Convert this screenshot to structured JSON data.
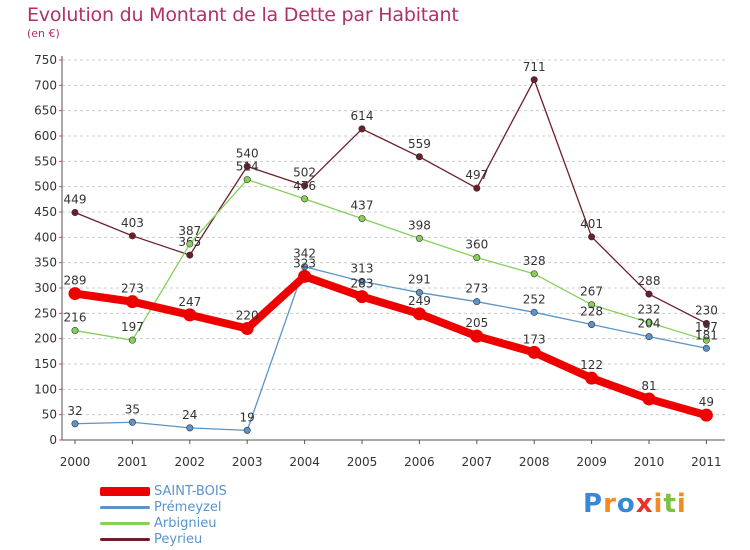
{
  "header": {
    "title": "Evolution du Montant de la Dette par Habitant",
    "subtitle": "(en €)"
  },
  "colors": {
    "title": "#b0306a",
    "grid": "#cccccc",
    "axis": "#555555",
    "tick_red": "#ff4444"
  },
  "chart_data": {
    "type": "line",
    "title": "Evolution du Montant de la Dette par Habitant",
    "ylabel": "(en €)",
    "xlabel": "",
    "categories": [
      "2000",
      "2001",
      "2002",
      "2003",
      "2004",
      "2005",
      "2006",
      "2007",
      "2008",
      "2009",
      "2010",
      "2011"
    ],
    "y_ticks": [
      0,
      50,
      100,
      150,
      200,
      250,
      300,
      350,
      400,
      450,
      500,
      550,
      600,
      650,
      700,
      750
    ],
    "ylim": [
      0,
      750
    ],
    "grid": "horizontal-dashed",
    "legend_position": "bottom-left",
    "series": [
      {
        "name": "Peyrieu",
        "color": "#6b1e2b",
        "values": [
          449,
          403,
          365,
          540,
          502,
          614,
          559,
          497,
          711,
          401,
          288,
          230
        ]
      },
      {
        "name": "Arbignieu",
        "color": "#86d05a",
        "values": [
          216,
          197,
          387,
          514,
          476,
          437,
          398,
          360,
          328,
          267,
          232,
          197
        ]
      },
      {
        "name": "Prémeyzel",
        "color": "#5a94c8",
        "values": [
          32,
          35,
          24,
          19,
          342,
          313,
          291,
          273,
          252,
          228,
          204,
          181
        ]
      },
      {
        "name": "SAINT-BOIS",
        "color": "#ee0000",
        "values": [
          289,
          273,
          247,
          220,
          323,
          283,
          249,
          205,
          173,
          122,
          81,
          49
        ]
      }
    ]
  },
  "legend": {
    "items": [
      {
        "label": "SAINT-BOIS",
        "color": "#ee0000",
        "thick": true
      },
      {
        "label": "Prémeyzel",
        "color": "#5a94c8",
        "thick": false
      },
      {
        "label": "Arbignieu",
        "color": "#86d05a",
        "thick": false
      },
      {
        "label": "Peyrieu",
        "color": "#6b1e2b",
        "thick": false
      }
    ]
  },
  "logo": {
    "letters": [
      "P",
      "r",
      "o",
      "x",
      "i",
      "t",
      "i"
    ],
    "colors": [
      "#3a86d8",
      "#f28c1e",
      "#3a86d8",
      "#e8322a",
      "#f28c1e",
      "#7cc142",
      "#f28c1e"
    ]
  }
}
